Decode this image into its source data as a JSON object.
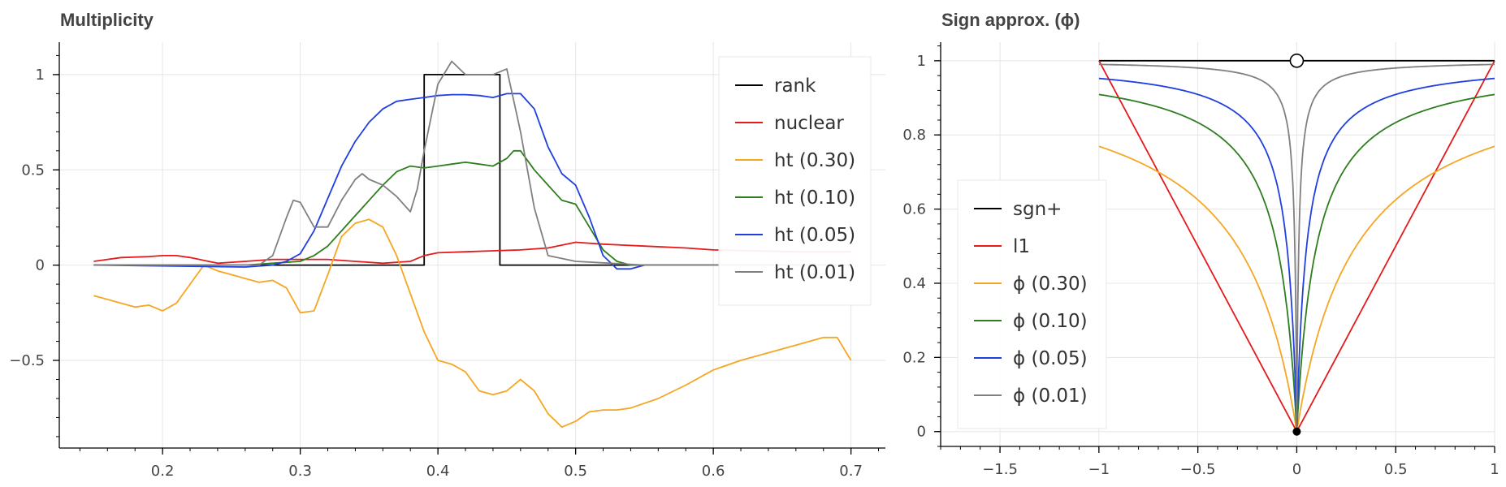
{
  "chart_data": [
    {
      "type": "line",
      "title": "Multiplicity",
      "xlim": [
        0.125,
        0.725
      ],
      "ylim": [
        -0.96,
        1.17
      ],
      "xticks": [
        0.2,
        0.3,
        0.4,
        0.5,
        0.6,
        0.7
      ],
      "xtick_labels": [
        "0.2",
        "0.3",
        "0.4",
        "0.5",
        "0.6",
        "0.7"
      ],
      "yticks": [
        -0.5,
        0,
        0.5,
        1
      ],
      "ytick_labels": [
        "−0.5",
        "0",
        "0.5",
        "1"
      ],
      "grid": true,
      "legend_position": "top-right",
      "series": [
        {
          "name": "rank",
          "color": "#000000",
          "step": true,
          "x": [
            0.15,
            0.39,
            0.39,
            0.445,
            0.445,
            0.7
          ],
          "y": [
            0,
            0,
            1,
            1,
            0,
            0
          ]
        },
        {
          "name": "nuclear",
          "color": "#e41a1c",
          "x": [
            0.15,
            0.17,
            0.19,
            0.2,
            0.21,
            0.22,
            0.24,
            0.26,
            0.28,
            0.3,
            0.32,
            0.34,
            0.36,
            0.38,
            0.39,
            0.4,
            0.42,
            0.44,
            0.46,
            0.48,
            0.5,
            0.52,
            0.55,
            0.58,
            0.6,
            0.63,
            0.66,
            0.7
          ],
          "y": [
            0.02,
            0.04,
            0.045,
            0.05,
            0.05,
            0.04,
            0.01,
            0.02,
            0.03,
            0.03,
            0.03,
            0.02,
            0.01,
            0.02,
            0.05,
            0.065,
            0.07,
            0.075,
            0.08,
            0.09,
            0.12,
            0.11,
            0.1,
            0.09,
            0.08,
            0.075,
            0.07,
            0.07
          ]
        },
        {
          "name": "ht (0.30)",
          "color": "#f5a623",
          "x": [
            0.15,
            0.17,
            0.18,
            0.19,
            0.2,
            0.21,
            0.22,
            0.23,
            0.24,
            0.25,
            0.26,
            0.27,
            0.28,
            0.29,
            0.3,
            0.31,
            0.32,
            0.33,
            0.34,
            0.35,
            0.36,
            0.37,
            0.38,
            0.39,
            0.4,
            0.41,
            0.42,
            0.43,
            0.44,
            0.45,
            0.46,
            0.47,
            0.48,
            0.49,
            0.5,
            0.51,
            0.52,
            0.53,
            0.54,
            0.56,
            0.58,
            0.6,
            0.62,
            0.64,
            0.66,
            0.68,
            0.69,
            0.7
          ],
          "y": [
            -0.16,
            -0.2,
            -0.22,
            -0.21,
            -0.24,
            -0.2,
            -0.1,
            0.0,
            -0.03,
            -0.05,
            -0.07,
            -0.09,
            -0.08,
            -0.12,
            -0.25,
            -0.24,
            -0.05,
            0.15,
            0.22,
            0.24,
            0.2,
            0.05,
            -0.15,
            -0.35,
            -0.5,
            -0.52,
            -0.56,
            -0.66,
            -0.68,
            -0.66,
            -0.6,
            -0.66,
            -0.78,
            -0.85,
            -0.82,
            -0.77,
            -0.76,
            -0.76,
            -0.75,
            -0.7,
            -0.63,
            -0.55,
            -0.5,
            -0.46,
            -0.42,
            -0.38,
            -0.38,
            -0.5
          ]
        },
        {
          "name": "ht (0.10)",
          "color": "#2e7d1f",
          "x": [
            0.15,
            0.26,
            0.28,
            0.3,
            0.31,
            0.32,
            0.33,
            0.34,
            0.35,
            0.36,
            0.37,
            0.38,
            0.39,
            0.4,
            0.41,
            0.42,
            0.43,
            0.44,
            0.45,
            0.455,
            0.46,
            0.47,
            0.48,
            0.49,
            0.5,
            0.51,
            0.52,
            0.53,
            0.54,
            0.55,
            0.6,
            0.7
          ],
          "y": [
            0,
            0,
            0.01,
            0.02,
            0.05,
            0.1,
            0.18,
            0.26,
            0.34,
            0.42,
            0.49,
            0.52,
            0.51,
            0.52,
            0.53,
            0.54,
            0.53,
            0.52,
            0.56,
            0.6,
            0.6,
            0.5,
            0.42,
            0.34,
            0.32,
            0.2,
            0.08,
            0.02,
            0.0,
            0.0,
            0.0,
            0.0
          ]
        },
        {
          "name": "ht (0.05)",
          "color": "#1f3fe0",
          "x": [
            0.15,
            0.26,
            0.28,
            0.29,
            0.3,
            0.31,
            0.32,
            0.33,
            0.34,
            0.35,
            0.36,
            0.37,
            0.38,
            0.39,
            0.4,
            0.41,
            0.42,
            0.43,
            0.44,
            0.45,
            0.46,
            0.47,
            0.48,
            0.49,
            0.5,
            0.51,
            0.52,
            0.53,
            0.54,
            0.55,
            0.6,
            0.7
          ],
          "y": [
            0,
            -0.01,
            0.0,
            0.02,
            0.06,
            0.18,
            0.35,
            0.52,
            0.65,
            0.75,
            0.82,
            0.86,
            0.87,
            0.88,
            0.89,
            0.895,
            0.895,
            0.89,
            0.88,
            0.9,
            0.9,
            0.82,
            0.62,
            0.48,
            0.42,
            0.25,
            0.05,
            -0.02,
            -0.02,
            0.0,
            0.0,
            0.0
          ]
        },
        {
          "name": "ht (0.01)",
          "color": "#808080",
          "x": [
            0.15,
            0.27,
            0.28,
            0.29,
            0.295,
            0.3,
            0.31,
            0.32,
            0.33,
            0.34,
            0.345,
            0.35,
            0.36,
            0.37,
            0.38,
            0.385,
            0.39,
            0.4,
            0.41,
            0.42,
            0.43,
            0.44,
            0.45,
            0.46,
            0.47,
            0.48,
            0.5,
            0.55,
            0.7
          ],
          "y": [
            0,
            0.0,
            0.05,
            0.25,
            0.34,
            0.33,
            0.2,
            0.2,
            0.34,
            0.45,
            0.48,
            0.45,
            0.42,
            0.36,
            0.28,
            0.4,
            0.6,
            0.95,
            1.07,
            1.0,
            1.0,
            1.0,
            1.03,
            0.7,
            0.3,
            0.05,
            0.02,
            0.0,
            0.0
          ]
        }
      ]
    },
    {
      "type": "line",
      "title": "Sign approx. (ϕ)",
      "xlim": [
        -1.8,
        1.0
      ],
      "ylim": [
        -0.04,
        1.05
      ],
      "xticks": [
        -1.5,
        -1,
        -0.5,
        0,
        0.5,
        1
      ],
      "xtick_labels": [
        "−1.5",
        "−1",
        "−0.5",
        "0",
        "0.5",
        "1"
      ],
      "yticks": [
        0,
        0.2,
        0.4,
        0.6,
        0.8,
        1
      ],
      "ytick_labels": [
        "0",
        "0.2",
        "0.4",
        "0.6",
        "0.8",
        "1"
      ],
      "grid": true,
      "legend_position": "bottom-left",
      "functions": "l1 = |x|; ϕ(ε) = |x| / (|x| + ε)",
      "series": [
        {
          "name": "sgn+",
          "color": "#000000",
          "kind": "sgn"
        },
        {
          "name": "l1",
          "color": "#e41a1c",
          "kind": "abs"
        },
        {
          "name": "ϕ (0.30)",
          "color": "#f5a623",
          "kind": "phi",
          "eps": 0.3
        },
        {
          "name": "ϕ (0.10)",
          "color": "#2e7d1f",
          "kind": "phi",
          "eps": 0.1
        },
        {
          "name": "ϕ (0.05)",
          "color": "#1f3fe0",
          "kind": "phi",
          "eps": 0.05
        },
        {
          "name": "ϕ (0.01)",
          "color": "#808080",
          "kind": "phi",
          "eps": 0.01
        }
      ],
      "markers": [
        {
          "name": "open-circle",
          "x": 0,
          "y": 1
        },
        {
          "name": "filled-dot",
          "x": 0,
          "y": 0
        }
      ]
    }
  ]
}
